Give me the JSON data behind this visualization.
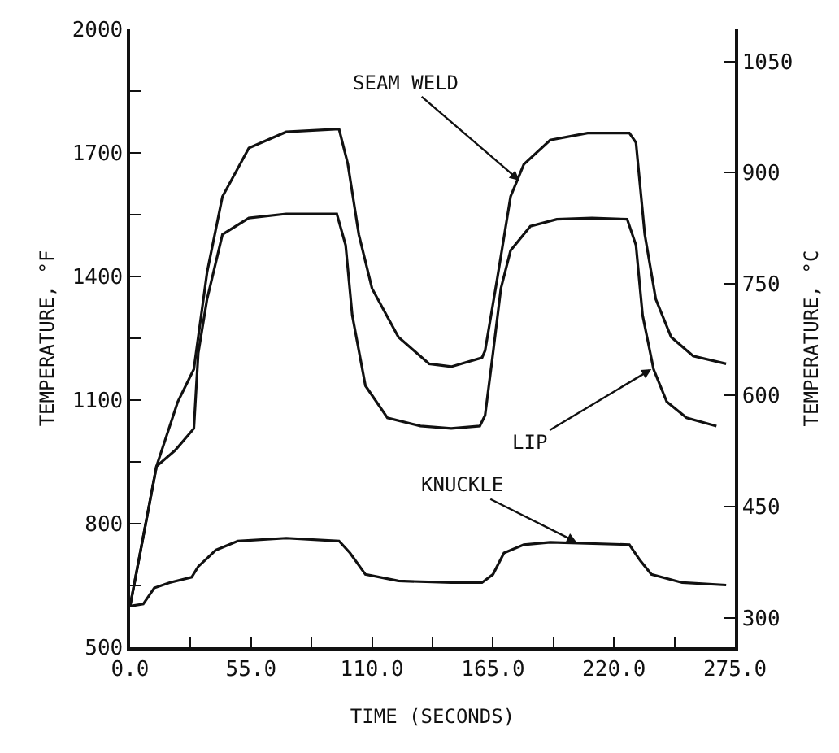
{
  "chart_data": {
    "type": "line",
    "xlabel": "TIME (SECONDS)",
    "ylabel": "TEMPERATURE, °F",
    "y2label": "TEMPERATURE, °C",
    "xlim": [
      0,
      275
    ],
    "xticks": [
      {
        "value": 0,
        "label": "0.0"
      },
      {
        "value": 27.5,
        "label": null
      },
      {
        "value": 55,
        "label": "55.0"
      },
      {
        "value": 82.5,
        "label": null
      },
      {
        "value": 110,
        "label": "110.0"
      },
      {
        "value": 137.5,
        "label": null
      },
      {
        "value": 165,
        "label": "165.0"
      },
      {
        "value": 192.5,
        "label": null
      },
      {
        "value": 220,
        "label": "220.0"
      },
      {
        "value": 247.5,
        "label": null
      },
      {
        "value": 275,
        "label": "275.0"
      }
    ],
    "ylim": [
      500,
      2000
    ],
    "yticks": [
      500,
      {
        "value": 650,
        "label": null
      },
      800,
      {
        "value": 950,
        "label": null
      },
      1100,
      {
        "value": 1250,
        "label": null
      },
      1400,
      {
        "value": 1550,
        "label": null
      },
      1700,
      {
        "value": 1850,
        "label": null
      },
      2000
    ],
    "y2lim": [
      260,
      1093.3
    ],
    "y2ticks": [
      300,
      450,
      600,
      750,
      900,
      1050
    ],
    "marker": "none",
    "line_style": "solid",
    "series": [
      {
        "color": "#111111",
        "x": [
          0,
          6,
          12,
          21.7,
          29,
          35,
          42,
          54,
          71,
          95,
          99,
          104,
          110,
          122,
          136,
          146,
          160,
          161.4,
          167,
          173,
          179,
          191,
          208,
          227,
          230,
          234,
          239,
          246,
          256,
          271
        ],
        "values": [
          600,
          769,
          939,
          1096,
          1175,
          1410,
          1594,
          1712,
          1751,
          1758,
          1673,
          1502,
          1371,
          1253,
          1188,
          1181,
          1203,
          1220,
          1397,
          1594,
          1672,
          1731,
          1748,
          1748,
          1725,
          1502,
          1345,
          1253,
          1207,
          1188
        ]
      },
      {
        "color": "#111111",
        "x": [
          0,
          6,
          12,
          20.5,
          29,
          31,
          35,
          42,
          54,
          71,
          94,
          98,
          101,
          107,
          117,
          132,
          146,
          159,
          161.4,
          165,
          168.6,
          173,
          182,
          194,
          210,
          226,
          230,
          233,
          238,
          244,
          253,
          266.6
        ],
        "values": [
          600,
          769,
          939,
          978,
          1031,
          1214,
          1345,
          1502,
          1542,
          1552,
          1552,
          1476,
          1306,
          1135,
          1057,
          1037,
          1031,
          1037,
          1063,
          1214,
          1371,
          1463,
          1522,
          1539,
          1542,
          1539,
          1476,
          1306,
          1175,
          1096,
          1057,
          1037
        ]
      },
      {
        "color": "#111111",
        "x": [
          0,
          6,
          11,
          18,
          28,
          31,
          39,
          49,
          71,
          95,
          100,
          107,
          122,
          146,
          160,
          165,
          170,
          179,
          191,
          227,
          232,
          237,
          251,
          271
        ],
        "values": [
          600,
          605,
          644,
          657,
          670,
          696,
          736,
          758,
          765,
          758,
          729,
          677,
          661,
          657,
          657,
          677,
          729,
          749,
          755,
          749,
          710,
          677,
          657,
          651
        ]
      }
    ],
    "annotations": [
      {
        "text": "SEAM WELD",
        "x": 177,
        "y": 1633
      },
      {
        "text": "LIP",
        "x": 237,
        "y": 1175
      },
      {
        "text": "KNUCKLE",
        "x": 203,
        "y": 755
      }
    ]
  }
}
